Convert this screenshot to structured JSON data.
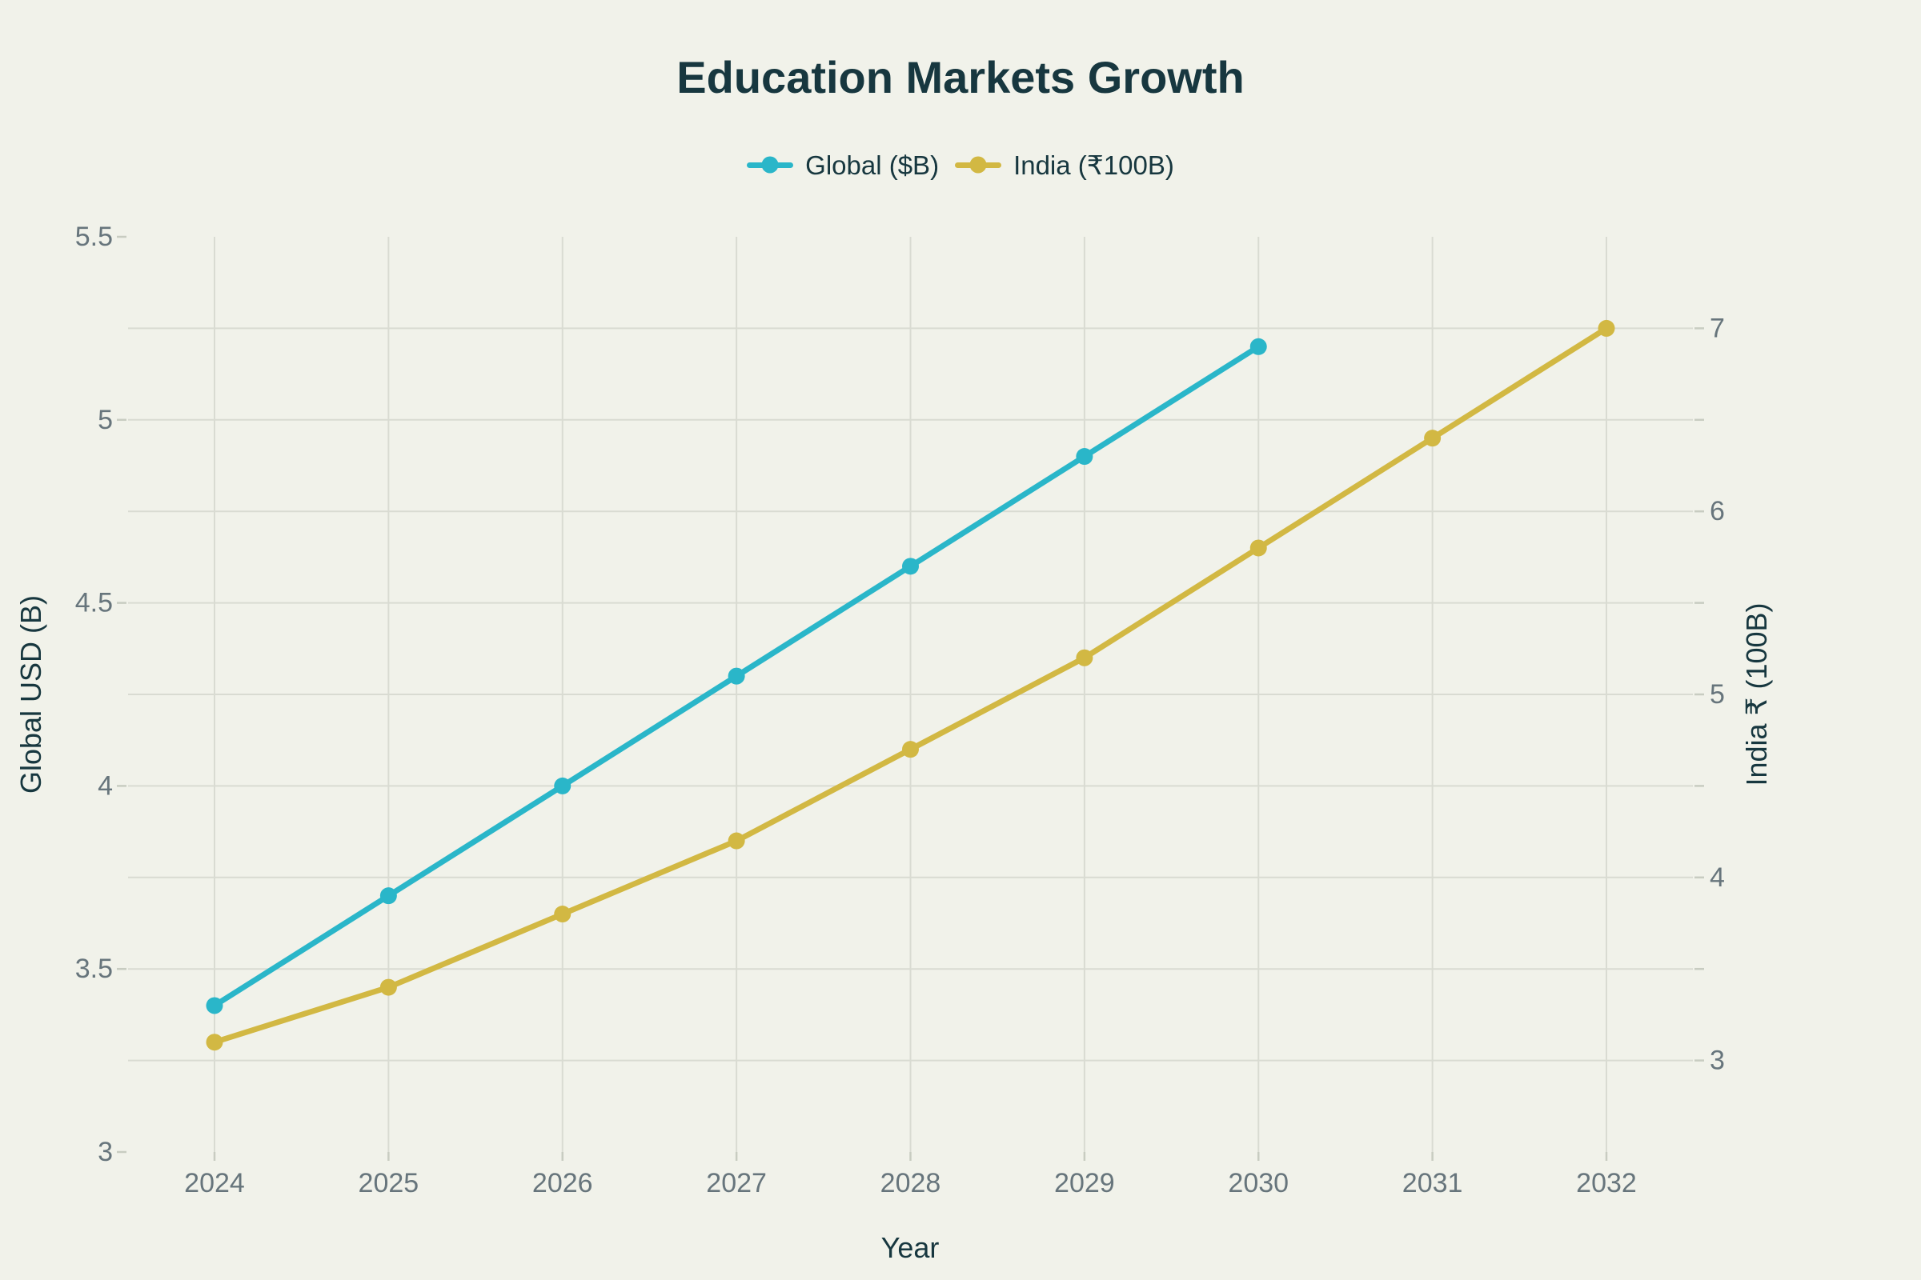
{
  "chart_data": {
    "type": "line",
    "title": "Education Markets Growth",
    "xlabel": "Year",
    "x": [
      2024,
      2025,
      2026,
      2027,
      2028,
      2029,
      2030,
      2031,
      2032
    ],
    "series": [
      {
        "name": "Global ($B)",
        "key": "global",
        "axis": "left",
        "color": "#2ab6c9",
        "marker": "circle",
        "values": [
          3.4,
          3.7,
          4.0,
          4.3,
          4.6,
          4.9,
          5.2
        ]
      },
      {
        "name": "India (₹100B)",
        "key": "india",
        "axis": "right",
        "color": "#d2b843",
        "marker": "circle",
        "values": [
          3.1,
          3.4,
          3.8,
          4.2,
          4.7,
          5.2,
          5.8,
          6.4,
          7.0
        ]
      }
    ],
    "axes": {
      "left": {
        "title": "Global USD (B)",
        "range": [
          3,
          5.5
        ],
        "ticks": [
          3,
          3.5,
          4,
          4.5,
          5,
          5.5
        ]
      },
      "right": {
        "title": "India ₹ (100B)",
        "range": [
          2.5,
          7.5
        ],
        "ticks": [
          3,
          4,
          5,
          6,
          7
        ],
        "minor_ticks": [
          3.5,
          4.5,
          5.5,
          6.5
        ],
        "gridlines": [
          3,
          3.5,
          4,
          4.5,
          5,
          5.5,
          6,
          6.5,
          7
        ]
      }
    },
    "grid": true,
    "x_gridlines": true,
    "legend_position": "top-center"
  },
  "colors": {
    "background": "#f1f2ea",
    "gridline": "#d9dbd2",
    "tick_dash": "#c8ccc1",
    "tick_text": "#67757c",
    "heading_text": "#17373f",
    "series_global": "#2ab6c9",
    "series_india": "#d2b843"
  }
}
